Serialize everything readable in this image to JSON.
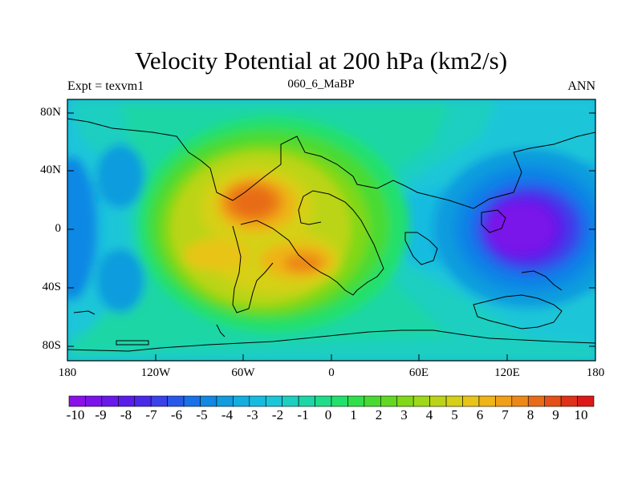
{
  "title": "Velocity Potential at 200 hPa (km2/s)",
  "left_string": "Expt = texvm1",
  "center_string": "060_6_MaBP",
  "right_string": "ANN",
  "lat_labels": [
    "80N",
    "40N",
    "0",
    "40S",
    "80S"
  ],
  "lon_labels": [
    "180",
    "120W",
    "60W",
    "0",
    "60E",
    "120E",
    "180"
  ],
  "colorbar": {
    "labels": [
      "-10",
      "-9",
      "-8",
      "-7",
      "-6",
      "-5",
      "-4",
      "-3",
      "-2",
      "-1",
      "0",
      "1",
      "2",
      "3",
      "4",
      "5",
      "6",
      "7",
      "8",
      "9",
      "10"
    ],
    "colors": [
      "#8a10e8",
      "#7a14ea",
      "#6a18ea",
      "#5a1cea",
      "#4a28ea",
      "#3a40ea",
      "#2858ea",
      "#1870ea",
      "#1088e4",
      "#109cde",
      "#12aee0",
      "#16bce0",
      "#1ac6d8",
      "#1ccfc0",
      "#1dd6a6",
      "#1fdc8a",
      "#22e06c",
      "#30e04a",
      "#48da30",
      "#64d820",
      "#80d818",
      "#9ed818",
      "#bcd418",
      "#d6d018",
      "#e8c418",
      "#eeb418",
      "#f0a018",
      "#ec8818",
      "#e86c18",
      "#e45018",
      "#e03018",
      "#dc1818"
    ]
  },
  "chart_data": {
    "type": "map-contour",
    "title": "Velocity Potential at 200 hPa (km2/s)",
    "variable": "velocity potential",
    "level": "200 hPa",
    "units": "km2/s",
    "experiment": "texvm1",
    "case": "060_6_MaBP",
    "season": "ANN",
    "lon_range": [
      -180,
      180
    ],
    "lat_range": [
      -90,
      90
    ],
    "contour_levels": [
      -10,
      -9,
      -8,
      -7,
      -6,
      -5,
      -4,
      -3,
      -2,
      -1,
      0,
      1,
      2,
      3,
      4,
      5,
      6,
      7,
      8,
      9,
      10
    ],
    "centers": [
      {
        "name": "max-north",
        "lon": -45,
        "lat": 18,
        "value": 8.5
      },
      {
        "name": "max-south",
        "lon": -20,
        "lat": -25,
        "value": 8
      },
      {
        "name": "min-east",
        "lon": 130,
        "lat": 0,
        "value": -10
      }
    ]
  }
}
